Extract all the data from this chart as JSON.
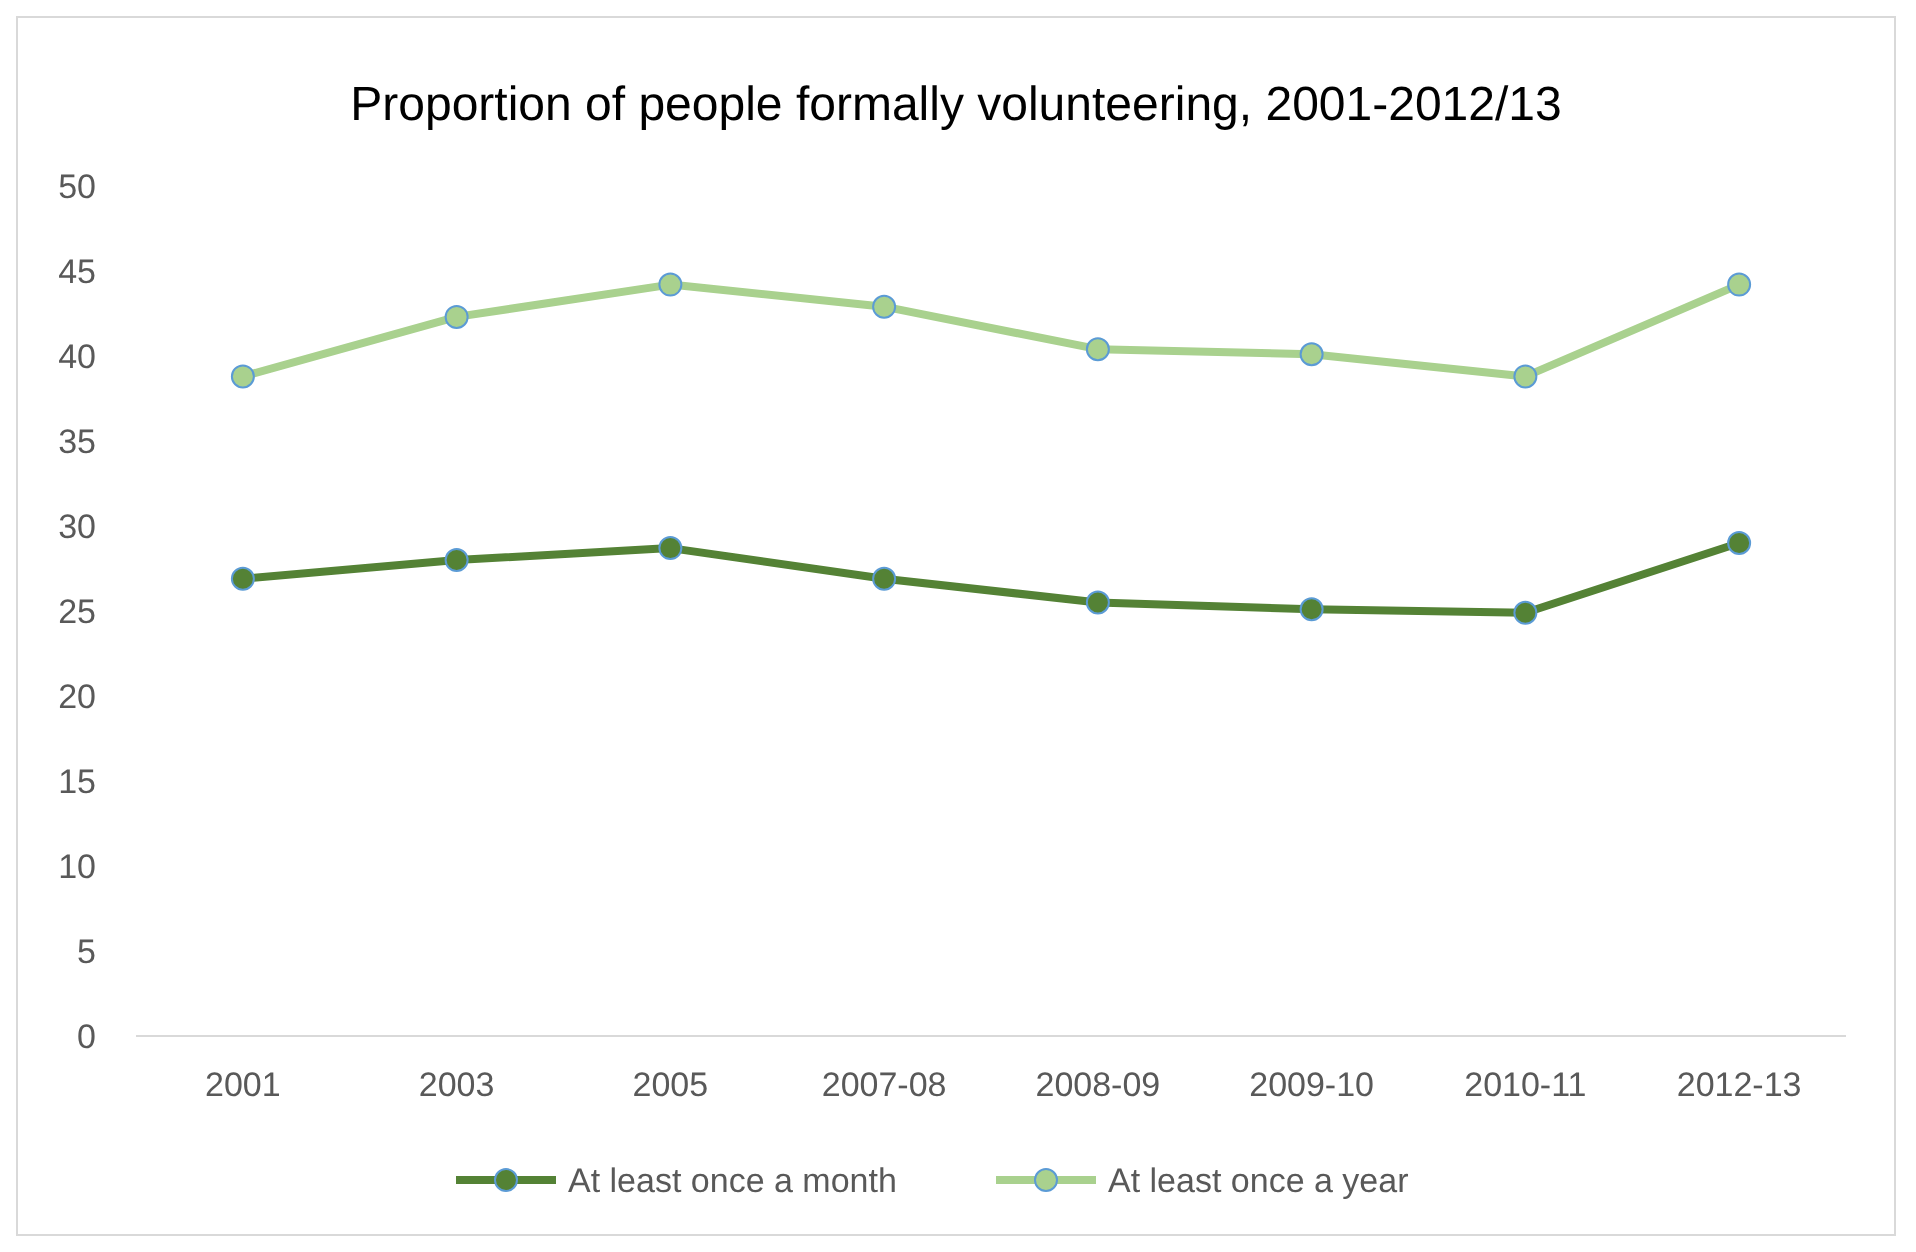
{
  "chart_data": {
    "type": "line",
    "title": "Proportion of people formally volunteering,  2001-2012/13",
    "categories": [
      "2001",
      "2003",
      "2005",
      "2007-08",
      "2008-09",
      "2009-10",
      "2010-11",
      "2012-13"
    ],
    "series": [
      {
        "name": "At least once a month",
        "color": "#548235",
        "values": [
          26.9,
          28.0,
          28.7,
          26.9,
          25.5,
          25.1,
          24.9,
          29.0
        ]
      },
      {
        "name": "At least once a year",
        "color": "#a9d18e",
        "values": [
          38.8,
          42.3,
          44.2,
          42.9,
          40.4,
          40.1,
          38.8,
          44.2
        ]
      }
    ],
    "ylim": [
      0,
      50
    ],
    "yticks": [
      0,
      5,
      10,
      15,
      20,
      25,
      30,
      35,
      40,
      45,
      50
    ],
    "grid": false,
    "legend": "bottom",
    "marker": "circle",
    "line_style": "solid"
  }
}
